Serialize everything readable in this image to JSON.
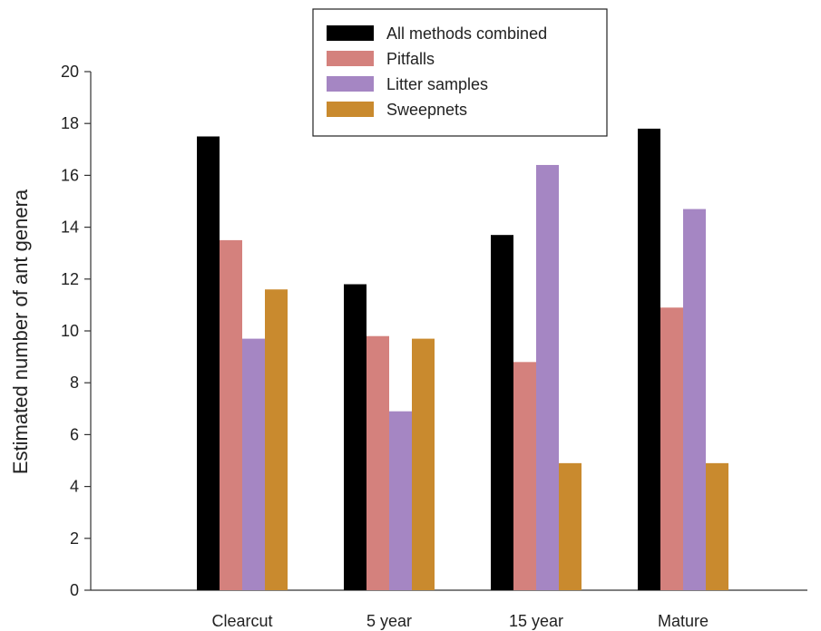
{
  "chart_data": {
    "type": "bar",
    "title": "",
    "xlabel": "",
    "ylabel": "Estimated number of ant genera",
    "ylim": [
      0,
      20
    ],
    "yticks": [
      0,
      2,
      4,
      6,
      8,
      10,
      12,
      14,
      16,
      18,
      20
    ],
    "grid": false,
    "legend_position": "top-center",
    "categories": [
      "Clearcut",
      "5 year",
      "15 year",
      "Mature"
    ],
    "series": [
      {
        "name": "All methods combined",
        "color": "#000000",
        "values": [
          17.5,
          11.8,
          13.7,
          17.8
        ]
      },
      {
        "name": "Pitfalls",
        "color": "#d4817d",
        "values": [
          13.5,
          9.8,
          8.8,
          10.9
        ]
      },
      {
        "name": "Litter samples",
        "color": "#a586c3",
        "values": [
          9.7,
          6.9,
          16.4,
          14.7
        ]
      },
      {
        "name": "Sweepnets",
        "color": "#c98a2e",
        "values": [
          11.6,
          9.7,
          4.9,
          4.9
        ]
      }
    ]
  }
}
